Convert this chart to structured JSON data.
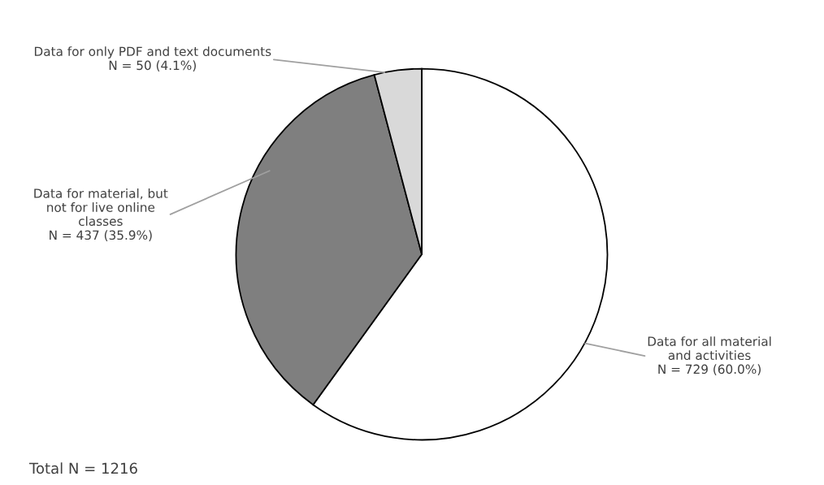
{
  "chart_data": {
    "type": "pie",
    "categories": [
      "Data for all material and activities",
      "Data for material, but not for live online classes",
      "Data for only PDF and text documents"
    ],
    "values": [
      729,
      437,
      50
    ],
    "value_labels": [
      "N = 729 (60.0%)",
      "N = 437 (35.9%)",
      "N = 50 (4.1%)"
    ],
    "colors": [
      "#ffffff",
      "#7f7f7f",
      "#d9d9d9"
    ],
    "annotations": [
      "Total N = 1216"
    ],
    "legend": false
  }
}
